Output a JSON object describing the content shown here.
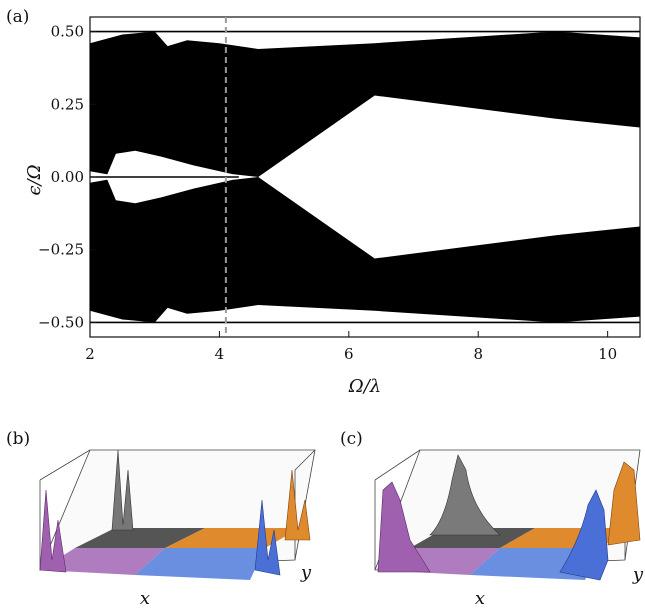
{
  "panels": {
    "a": "(a)",
    "b": "(b)",
    "c": "(c)"
  },
  "chart_data": {
    "type": "area",
    "xlabel": "Ω/λ",
    "ylabel": "ϵ/Ω",
    "xlim": [
      2,
      10.5
    ],
    "ylim": [
      -0.55,
      0.55
    ],
    "xticks": [
      2,
      4,
      6,
      8,
      10
    ],
    "xtick_labels": [
      "2",
      "4",
      "6",
      "8",
      "10"
    ],
    "yticks": [
      0.5,
      0.25,
      0.0,
      -0.25,
      -0.5
    ],
    "ytick_labels": [
      "0.50",
      "0.25",
      "0.00",
      "−0.25",
      "−0.50"
    ],
    "grid": false,
    "vline": {
      "x": 4.1,
      "style": "dashed",
      "color": "#9a9a9a"
    },
    "band_upper": {
      "x": [
        2.0,
        2.5,
        3.0,
        3.2,
        3.5,
        4.0,
        4.6,
        6.4,
        9.2,
        10.5
      ],
      "top": [
        0.46,
        0.49,
        0.5,
        0.45,
        0.47,
        0.46,
        0.44,
        0.46,
        0.5,
        0.48
      ],
      "bottom": [
        0.02,
        0.0,
        0.0,
        0.0,
        0.0,
        0.0,
        0.0,
        0.28,
        0.2,
        0.17
      ]
    },
    "band_lower": {
      "x": [
        2.0,
        2.5,
        3.0,
        3.2,
        3.5,
        4.0,
        4.6,
        6.4,
        9.2,
        10.5
      ],
      "top": [
        -0.02,
        0.0,
        0.0,
        0.0,
        0.0,
        0.0,
        0.0,
        -0.28,
        -0.2,
        -0.17
      ],
      "bottom": [
        -0.46,
        -0.49,
        -0.5,
        -0.45,
        -0.47,
        -0.46,
        -0.44,
        -0.46,
        -0.5,
        -0.48
      ]
    },
    "gap": {
      "x": [
        2.25,
        2.4,
        2.7,
        3.1,
        3.6,
        4.2,
        4.6
      ],
      "half_width": [
        0.0,
        0.08,
        0.09,
        0.07,
        0.04,
        0.01,
        0.0
      ]
    },
    "edge_modes": [
      {
        "name": "",
        "values_x": [
          2.0,
          10.5
        ],
        "values_y": [
          0.5,
          0.5
        ]
      },
      {
        "name": "",
        "values_x": [
          2.0,
          10.5
        ],
        "values_y": [
          -0.5,
          -0.5
        ]
      },
      {
        "name": "",
        "values_x": [
          2.0,
          4.3
        ],
        "values_y": [
          0.0,
          0.0
        ]
      }
    ]
  },
  "surfaces": {
    "b": {
      "xlabel": "x",
      "ylabel": "y",
      "colors": {
        "gray": "#8a8a8a",
        "purple": "#b07cc0",
        "orange": "#e08a2e",
        "blue": "#6a8fe0"
      }
    },
    "c": {
      "xlabel": "x",
      "ylabel": "y",
      "colors": {
        "gray": "#8a8a8a",
        "purple": "#b07cc0",
        "orange": "#e08a2e",
        "blue": "#6a8fe0"
      }
    }
  }
}
